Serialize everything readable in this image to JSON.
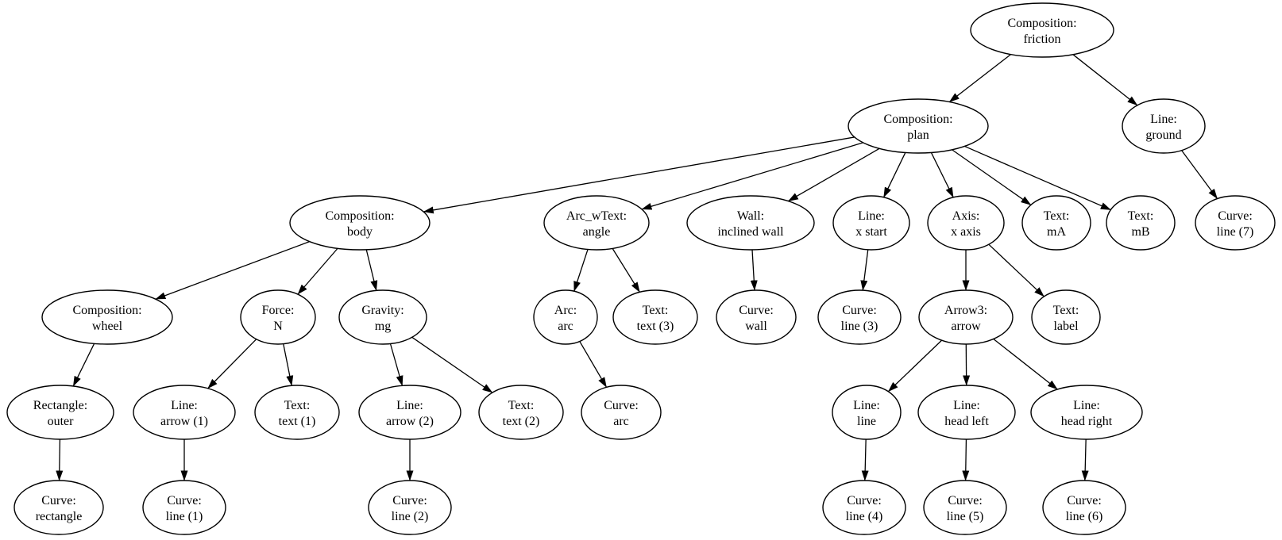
{
  "diagram": {
    "kind": "tree-graph",
    "background_color": "#ffffff",
    "node_fill_color": "#ffffff",
    "node_stroke_color": "#000000",
    "edge_color": "#000000",
    "text_color": "#000000"
  },
  "nodes": {
    "friction": {
      "type": "Composition:",
      "name": "friction"
    },
    "plan": {
      "type": "Composition:",
      "name": "plan"
    },
    "ground": {
      "type": "Line:",
      "name": "ground"
    },
    "body": {
      "type": "Composition:",
      "name": "body"
    },
    "angle": {
      "type": "Arc_wText:",
      "name": "angle"
    },
    "inclined_wall": {
      "type": "Wall:",
      "name": "inclined wall"
    },
    "x_start": {
      "type": "Line:",
      "name": "x start"
    },
    "x_axis": {
      "type": "Axis:",
      "name": "x axis"
    },
    "mA": {
      "type": "Text:",
      "name": "mA"
    },
    "mB": {
      "type": "Text:",
      "name": "mB"
    },
    "line7": {
      "type": "Curve:",
      "name": "line (7)"
    },
    "wheel": {
      "type": "Composition:",
      "name": "wheel"
    },
    "force_n": {
      "type": "Force:",
      "name": "N"
    },
    "gravity_mg": {
      "type": "Gravity:",
      "name": "mg"
    },
    "arc": {
      "type": "Arc:",
      "name": "arc"
    },
    "text3": {
      "type": "Text:",
      "name": "text (3)"
    },
    "curve_wall": {
      "type": "Curve:",
      "name": "wall"
    },
    "line3": {
      "type": "Curve:",
      "name": "line (3)"
    },
    "arrow3": {
      "type": "Arrow3:",
      "name": "arrow"
    },
    "label": {
      "type": "Text:",
      "name": "label"
    },
    "outer": {
      "type": "Rectangle:",
      "name": "outer"
    },
    "arrow1": {
      "type": "Line:",
      "name": "arrow (1)"
    },
    "text1": {
      "type": "Text:",
      "name": "text (1)"
    },
    "arrow2": {
      "type": "Line:",
      "name": "arrow (2)"
    },
    "text2": {
      "type": "Text:",
      "name": "text (2)"
    },
    "curve_arc": {
      "type": "Curve:",
      "name": "arc"
    },
    "line_line": {
      "type": "Line:",
      "name": "line"
    },
    "head_left": {
      "type": "Line:",
      "name": "head left"
    },
    "head_right": {
      "type": "Line:",
      "name": "head right"
    },
    "curve_rectangle": {
      "type": "Curve:",
      "name": "rectangle"
    },
    "line1": {
      "type": "Curve:",
      "name": "line (1)"
    },
    "line2": {
      "type": "Curve:",
      "name": "line (2)"
    },
    "line4": {
      "type": "Curve:",
      "name": "line (4)"
    },
    "line5": {
      "type": "Curve:",
      "name": "line (5)"
    },
    "line6": {
      "type": "Curve:",
      "name": "line (6)"
    }
  },
  "edges": [
    {
      "from": "friction",
      "to": "plan"
    },
    {
      "from": "friction",
      "to": "ground"
    },
    {
      "from": "plan",
      "to": "body"
    },
    {
      "from": "plan",
      "to": "angle"
    },
    {
      "from": "plan",
      "to": "inclined_wall"
    },
    {
      "from": "plan",
      "to": "x_start"
    },
    {
      "from": "plan",
      "to": "x_axis"
    },
    {
      "from": "plan",
      "to": "mA"
    },
    {
      "from": "plan",
      "to": "mB"
    },
    {
      "from": "ground",
      "to": "line7"
    },
    {
      "from": "body",
      "to": "wheel"
    },
    {
      "from": "body",
      "to": "force_n"
    },
    {
      "from": "body",
      "to": "gravity_mg"
    },
    {
      "from": "angle",
      "to": "arc"
    },
    {
      "from": "angle",
      "to": "text3"
    },
    {
      "from": "inclined_wall",
      "to": "curve_wall"
    },
    {
      "from": "x_start",
      "to": "line3"
    },
    {
      "from": "x_axis",
      "to": "arrow3"
    },
    {
      "from": "x_axis",
      "to": "label"
    },
    {
      "from": "wheel",
      "to": "outer"
    },
    {
      "from": "force_n",
      "to": "arrow1"
    },
    {
      "from": "force_n",
      "to": "text1"
    },
    {
      "from": "gravity_mg",
      "to": "arrow2"
    },
    {
      "from": "gravity_mg",
      "to": "text2"
    },
    {
      "from": "arc",
      "to": "curve_arc"
    },
    {
      "from": "arrow3",
      "to": "line_line"
    },
    {
      "from": "arrow3",
      "to": "head_left"
    },
    {
      "from": "arrow3",
      "to": "head_right"
    },
    {
      "from": "outer",
      "to": "curve_rectangle"
    },
    {
      "from": "arrow1",
      "to": "line1"
    },
    {
      "from": "arrow2",
      "to": "line2"
    },
    {
      "from": "line_line",
      "to": "line4"
    },
    {
      "from": "head_left",
      "to": "line5"
    },
    {
      "from": "head_right",
      "to": "line6"
    }
  ]
}
